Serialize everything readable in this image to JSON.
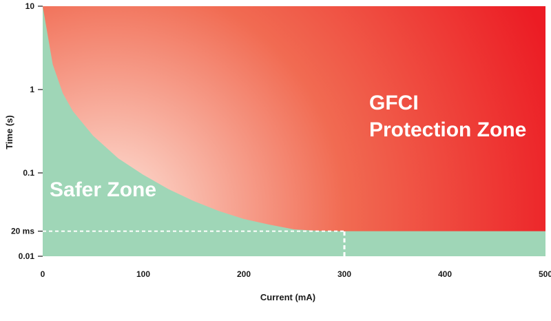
{
  "chart_data": {
    "type": "area",
    "xlabel": "Current (mA)",
    "ylabel": "Time (s)",
    "xlim": [
      0,
      500
    ],
    "ylim": [
      0.01,
      10
    ],
    "y_scale": "log",
    "x_ticks": [
      0,
      100,
      200,
      300,
      400,
      500
    ],
    "x_tick_labels": [
      "0",
      "100",
      "200",
      "300",
      "400",
      "500"
    ],
    "y_ticks": [
      10,
      1,
      0.1,
      0.02,
      0.01
    ],
    "y_tick_labels": [
      "10",
      "1",
      "0.1",
      "20 ms",
      "0.01"
    ],
    "boundary_curve": {
      "x": [
        0,
        10,
        20,
        30,
        50,
        75,
        100,
        125,
        150,
        175,
        200,
        225,
        250,
        275,
        300,
        500
      ],
      "y": [
        10,
        2.0,
        0.9,
        0.55,
        0.28,
        0.15,
        0.095,
        0.064,
        0.046,
        0.035,
        0.028,
        0.024,
        0.021,
        0.0202,
        0.02,
        0.02
      ]
    },
    "reference_lines": [
      {
        "axis": "y",
        "value": 0.02,
        "from_x": 0,
        "to_x": 300,
        "style": "dashed"
      },
      {
        "axis": "x",
        "value": 300,
        "from_y": 0.01,
        "to_y": 0.02,
        "style": "dashed"
      }
    ],
    "regions": [
      {
        "name": "Safer Zone",
        "color": "#9fd6b7"
      },
      {
        "name": "GFCI Protection Zone",
        "color_start": "#fde3d9",
        "color_end": "#ec1c24"
      }
    ]
  },
  "labels": {
    "safer_zone": "Safer Zone",
    "protection_zone_line1": "GFCI",
    "protection_zone_line2": "Protection Zone"
  }
}
